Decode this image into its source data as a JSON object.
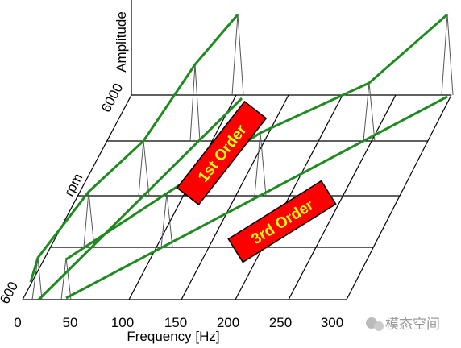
{
  "axes": {
    "z_label": "Amplitude",
    "y_label": "rpm",
    "y_ticks": [
      "600",
      "6000"
    ],
    "x_label": "Frequency [Hz]",
    "x_ticks": [
      "0",
      "50",
      "100",
      "150",
      "200",
      "250",
      "300"
    ]
  },
  "annotations": [
    "1st Order",
    "3rd Order"
  ],
  "watermark": "模态空间"
}
